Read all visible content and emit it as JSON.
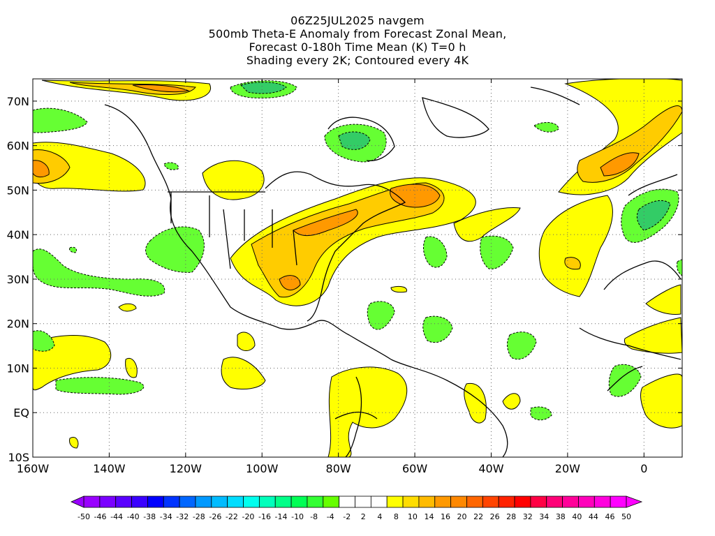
{
  "title": {
    "line1": "06Z25JUL2025 navgem",
    "line2": "500mb Theta-E Anomaly from Forecast Zonal Mean,",
    "line3": "Forecast 0-180h Time Mean (K) T=0 h",
    "line4": "Shading every 2K; Contoured every 4K"
  },
  "map": {
    "lon_min": -160,
    "lon_max": 10,
    "lat_min": -10,
    "lat_max": 75,
    "lon_ticks": [
      {
        "value": -160,
        "label": "160W"
      },
      {
        "value": -140,
        "label": "140W"
      },
      {
        "value": -120,
        "label": "120W"
      },
      {
        "value": -100,
        "label": "100W"
      },
      {
        "value": -80,
        "label": "80W"
      },
      {
        "value": -60,
        "label": "60W"
      },
      {
        "value": -40,
        "label": "40W"
      },
      {
        "value": -20,
        "label": "20W"
      },
      {
        "value": 0,
        "label": "0"
      }
    ],
    "lat_ticks": [
      {
        "value": -10,
        "label": "10S"
      },
      {
        "value": 0,
        "label": "EQ"
      },
      {
        "value": 10,
        "label": "10N"
      },
      {
        "value": 20,
        "label": "20N"
      },
      {
        "value": 30,
        "label": "30N"
      },
      {
        "value": 40,
        "label": "40N"
      },
      {
        "value": 50,
        "label": "50N"
      },
      {
        "value": 60,
        "label": "60N"
      },
      {
        "value": 70,
        "label": "70N"
      }
    ],
    "grid": true
  },
  "colorbar": {
    "labels": [
      "-50",
      "-46",
      "-44",
      "-40",
      "-38",
      "-34",
      "-32",
      "-28",
      "-26",
      "-22",
      "-20",
      "-16",
      "-14",
      "-10",
      "-8",
      "-4",
      "-2",
      "2",
      "4",
      "8",
      "10",
      "14",
      "16",
      "20",
      "22",
      "26",
      "28",
      "32",
      "34",
      "38",
      "40",
      "44",
      "46",
      "50"
    ],
    "colors": [
      "#9900ff",
      "#7a00ff",
      "#5a00ff",
      "#3a00ff",
      "#0000ff",
      "#0033ff",
      "#0066ff",
      "#0099ff",
      "#00bbff",
      "#00ddff",
      "#00ffee",
      "#00ffbb",
      "#00ff88",
      "#00ff55",
      "#33ff33",
      "#66ff00",
      "#ffffff",
      "#ffffff",
      "#ffffff",
      "#ffff00",
      "#ffdd00",
      "#ffbb00",
      "#ff9900",
      "#ff8800",
      "#ff6600",
      "#ff4400",
      "#ff2200",
      "#ff0000",
      "#ff0044",
      "#ff0077",
      "#ff0099",
      "#ff00bb",
      "#ff00dd",
      "#ff00ff"
    ]
  },
  "fields": {
    "warm_light": "#ffff00",
    "warm_mid": "#ffcc00",
    "warm_strong": "#ff9900",
    "cold": "#66ff33",
    "cold_strong": "#33cc66"
  }
}
